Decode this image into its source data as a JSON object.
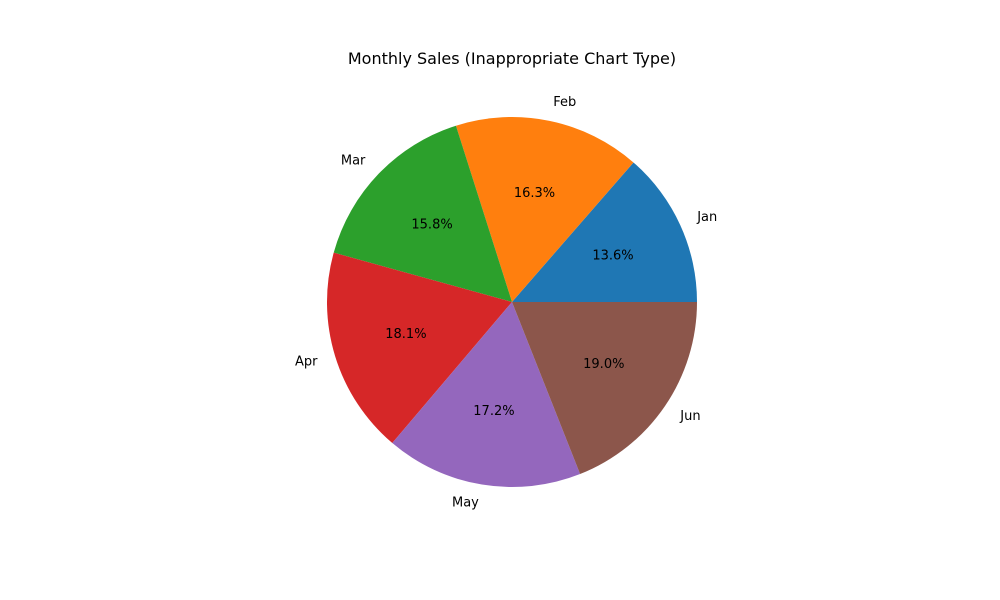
{
  "chart_data": {
    "type": "pie",
    "title": "Monthly Sales (Inappropriate Chart Type)",
    "categories": [
      "Jan",
      "Feb",
      "Mar",
      "Apr",
      "May",
      "Jun"
    ],
    "values": [
      13.6,
      16.3,
      15.8,
      18.1,
      17.2,
      19.0
    ],
    "percent_labels": [
      "13.6%",
      "16.3%",
      "15.8%",
      "18.1%",
      "17.2%",
      "19.0%"
    ],
    "colors": [
      "#1f77b4",
      "#ff7f0e",
      "#2ca02c",
      "#d62728",
      "#9467bd",
      "#8c564b"
    ],
    "start_angle_deg": 0,
    "direction": "counterclockwise",
    "legend": "none"
  }
}
